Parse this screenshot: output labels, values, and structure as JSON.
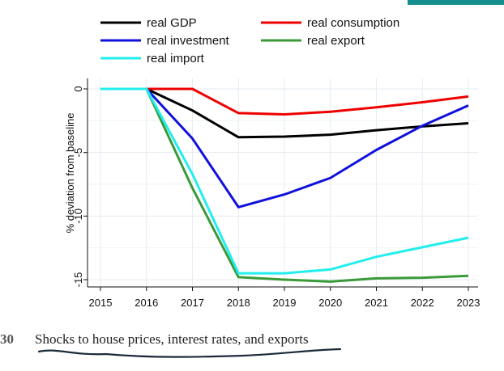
{
  "chart_data": {
    "type": "line",
    "title": "",
    "xlabel": "",
    "ylabel": "% deviation from baseline",
    "x": [
      2015,
      2016,
      2017,
      2018,
      2019,
      2020,
      2021,
      2022,
      2023
    ],
    "xlim": [
      2015,
      2023
    ],
    "ylim": [
      -15.5,
      0.5
    ],
    "yticks": [
      0,
      -5,
      -10,
      -15
    ],
    "ytick_labels": [
      "0",
      "-5",
      "-10",
      "-15"
    ],
    "xtick_labels": [
      "2015",
      "2016",
      "2017",
      "2018",
      "2019",
      "2020",
      "2021",
      "2022",
      "2023"
    ],
    "grid": true,
    "legend": "top",
    "series": [
      {
        "name": "real GDP",
        "color": "#000000",
        "values": [
          0,
          0,
          -1.7,
          -3.8,
          -3.75,
          -3.6,
          -3.25,
          -2.95,
          -2.7
        ]
      },
      {
        "name": "real consumption",
        "color": "#ee0000",
        "values": [
          0,
          0,
          0,
          -1.9,
          -2.0,
          -1.8,
          -1.45,
          -1.05,
          -0.6
        ]
      },
      {
        "name": "real investment",
        "color": "#1010dd",
        "values": [
          0,
          0,
          -3.9,
          -9.3,
          -8.3,
          -7.0,
          -4.8,
          -2.9,
          -1.3
        ]
      },
      {
        "name": "real export",
        "color": "#3a9a3a",
        "values": [
          0,
          0,
          -7.8,
          -14.8,
          -15.0,
          -15.15,
          -14.9,
          -14.85,
          -14.7
        ]
      },
      {
        "name": "real import",
        "color": "#22eeee",
        "values": [
          0,
          0,
          -6.7,
          -14.5,
          -14.5,
          -14.2,
          -13.2,
          -12.45,
          -11.7
        ]
      }
    ]
  },
  "caption": {
    "number": "30",
    "text": "Shocks to house prices, interest rates, and exports"
  }
}
